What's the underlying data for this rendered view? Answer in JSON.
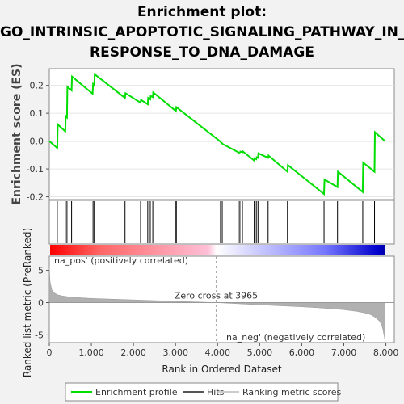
{
  "title_lines": [
    "Enrichment plot:",
    "GO_INTRINSIC_APOPTOTIC_SIGNALING_PATHWAY_IN_",
    "RESPONSE_TO_DNA_DAMAGE"
  ],
  "colors": {
    "enrichment": "#00dd00",
    "hits": "#000000",
    "pos": "#ff0000",
    "neg": "#0000ff",
    "metric": "#b0b0b0"
  },
  "chart_data": {
    "type": "line",
    "es_panel": {
      "ylabel": "Enrichment score (ES)",
      "ylim": [
        -0.21,
        0.26
      ],
      "yticks": [
        -0.2,
        -0.1,
        0.0,
        0.1,
        0.2
      ],
      "ytick_labels": [
        "-0.2",
        "-0.1",
        "0.0",
        "0.1",
        "0.2"
      ],
      "xlim": [
        0,
        8200
      ],
      "series": [
        {
          "name": "Enrichment profile",
          "x": [
            0,
            190,
            200,
            380,
            390,
            420,
            430,
            530,
            540,
            1030,
            1040,
            1070,
            1080,
            1800,
            1810,
            2170,
            2180,
            2340,
            2350,
            2400,
            2410,
            2460,
            2470,
            3010,
            3020,
            4070,
            4080,
            4110,
            4120,
            4490,
            4500,
            4530,
            4540,
            4590,
            4600,
            4870,
            4880,
            4920,
            4930,
            4960,
            4970,
            5200,
            5210,
            5660,
            5670,
            6530,
            6540,
            6850,
            6860,
            7450,
            7460,
            7730,
            7740,
            7980
          ],
          "y": [
            0.0,
            -0.025,
            0.06,
            0.035,
            0.09,
            0.085,
            0.195,
            0.182,
            0.232,
            0.17,
            0.205,
            0.2,
            0.24,
            0.155,
            0.172,
            0.138,
            0.148,
            0.132,
            0.155,
            0.15,
            0.162,
            0.158,
            0.175,
            0.108,
            0.122,
            -0.002,
            -0.005,
            -0.008,
            -0.01,
            -0.04,
            -0.042,
            -0.041,
            -0.038,
            -0.04,
            -0.037,
            -0.07,
            -0.062,
            -0.065,
            -0.058,
            -0.06,
            -0.044,
            -0.06,
            -0.052,
            -0.11,
            -0.086,
            -0.19,
            -0.138,
            -0.165,
            -0.11,
            -0.183,
            -0.077,
            -0.11,
            0.032,
            0.0
          ]
        }
      ]
    },
    "hits": [
      190,
      380,
      420,
      530,
      1040,
      1070,
      1800,
      2170,
      2340,
      2400,
      2460,
      3010,
      3020,
      4070,
      4110,
      4490,
      4530,
      4590,
      4870,
      4920,
      4960,
      5200,
      5660,
      6530,
      6850,
      7450,
      7730
    ],
    "metric_panel": {
      "ylabel": "Ranked list metric (PreRanked)",
      "ylim": [
        -6.2,
        7.2
      ],
      "yticks": [
        -5,
        0,
        5
      ],
      "ytick_labels": [
        "-5",
        "0",
        "5"
      ],
      "xlabel": "Rank in Ordered Dataset",
      "xticks": [
        0,
        1000,
        2000,
        3000,
        4000,
        5000,
        6000,
        7000,
        8000
      ],
      "xtick_labels": [
        "0",
        "1,000",
        "2,000",
        "3,000",
        "4,000",
        "5,000",
        "6,000",
        "7,000",
        "8,000"
      ],
      "zero_cross": 3965,
      "zero_cross_label": "Zero cross at 3965",
      "pos_label": "'na_pos' (positively correlated)",
      "neg_label": "'na_neg' (negatively correlated)",
      "profile_x": [
        0,
        20,
        60,
        120,
        200,
        300,
        500,
        1000,
        2000,
        3000,
        3965,
        5000,
        6000,
        6500,
        7000,
        7300,
        7500,
        7650,
        7750,
        7850,
        7900,
        7930,
        7960,
        7980
      ],
      "profile_y": [
        5.6,
        3.2,
        2.0,
        1.5,
        1.2,
        1.05,
        0.85,
        0.65,
        0.42,
        0.2,
        0.0,
        -0.35,
        -0.65,
        -0.85,
        -1.1,
        -1.35,
        -1.6,
        -1.9,
        -2.3,
        -2.9,
        -3.5,
        -4.2,
        -5.2,
        -6.0
      ]
    },
    "legend": [
      "Enrichment profile",
      "Hits",
      "Ranking metric scores"
    ],
    "total": 7980
  }
}
